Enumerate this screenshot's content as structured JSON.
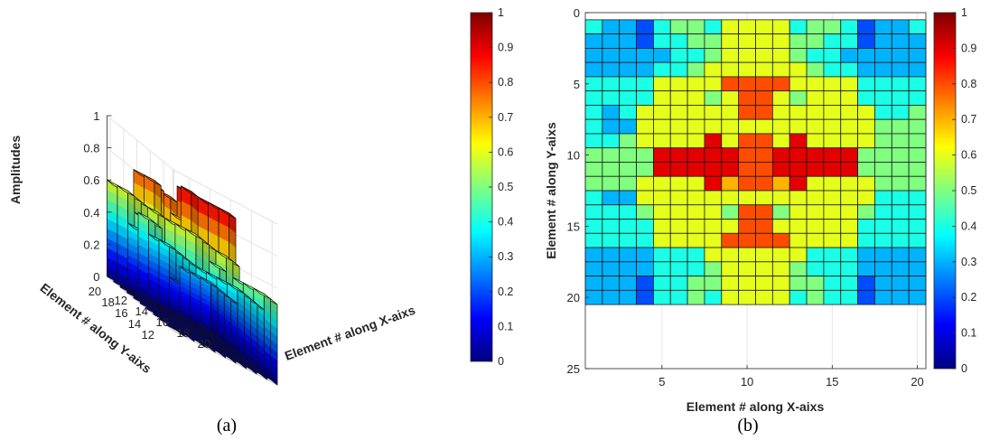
{
  "chart_data": [
    {
      "panel": "a",
      "type": "bar3d",
      "caption": "(a)",
      "zlabel": "Amplitudes",
      "xlabel": "Element # along X-aixs",
      "ylabel": "Element # along Y-aixs",
      "z_ticks": [
        0,
        0.2,
        0.4,
        0.6,
        0.8,
        1
      ],
      "x_ticks": [
        12,
        14,
        16,
        18,
        20
      ],
      "y_ticks": [
        12,
        14,
        16,
        18,
        20
      ],
      "zlim": [
        0,
        1
      ],
      "colormap": "jet",
      "colorbar_ticks": [
        0,
        0.1,
        0.2,
        0.3,
        0.4,
        0.5,
        0.6,
        0.7,
        0.8,
        0.9,
        1
      ],
      "grid": true
    },
    {
      "panel": "b",
      "type": "heatmap",
      "caption": "(b)",
      "xlabel": "Element # along X-aixs",
      "ylabel": "Element # along Y-aixs",
      "x_ticks": [
        5,
        10,
        15,
        20
      ],
      "y_ticks": [
        0,
        5,
        10,
        15,
        20,
        25
      ],
      "xlim": [
        0.5,
        20.5
      ],
      "ylim": [
        0,
        25
      ],
      "colormap": "jet",
      "colorbar_ticks": [
        0,
        0.1,
        0.2,
        0.3,
        0.4,
        0.5,
        0.6,
        0.7,
        0.8,
        0.9,
        1
      ],
      "grid": true,
      "rows": [
        [
          0.4,
          0.3,
          0.3,
          0.2,
          0.4,
          0.5,
          0.5,
          0.4,
          0.6,
          0.6,
          0.6,
          0.6,
          0.4,
          0.5,
          0.5,
          0.4,
          0.2,
          0.3,
          0.3,
          0.4
        ],
        [
          0.3,
          0.3,
          0.3,
          0.2,
          0.4,
          0.4,
          0.5,
          0.5,
          0.6,
          0.6,
          0.6,
          0.6,
          0.5,
          0.5,
          0.4,
          0.4,
          0.2,
          0.3,
          0.3,
          0.3
        ],
        [
          0.3,
          0.3,
          0.3,
          0.3,
          0.3,
          0.4,
          0.4,
          0.5,
          0.6,
          0.6,
          0.6,
          0.6,
          0.5,
          0.4,
          0.4,
          0.3,
          0.3,
          0.3,
          0.3,
          0.3
        ],
        [
          0.3,
          0.3,
          0.3,
          0.3,
          0.4,
          0.4,
          0.5,
          0.6,
          0.6,
          0.6,
          0.6,
          0.6,
          0.6,
          0.5,
          0.4,
          0.4,
          0.3,
          0.3,
          0.3,
          0.3
        ],
        [
          0.4,
          0.4,
          0.4,
          0.4,
          0.6,
          0.6,
          0.6,
          0.6,
          0.8,
          0.8,
          0.8,
          0.8,
          0.6,
          0.6,
          0.6,
          0.6,
          0.4,
          0.4,
          0.4,
          0.4
        ],
        [
          0.4,
          0.4,
          0.4,
          0.4,
          0.6,
          0.6,
          0.6,
          0.5,
          0.6,
          0.8,
          0.8,
          0.6,
          0.5,
          0.6,
          0.6,
          0.6,
          0.4,
          0.4,
          0.4,
          0.4
        ],
        [
          0.4,
          0.3,
          0.4,
          0.6,
          0.6,
          0.6,
          0.6,
          0.6,
          0.6,
          0.8,
          0.8,
          0.6,
          0.6,
          0.6,
          0.6,
          0.6,
          0.6,
          0.4,
          0.4,
          0.5
        ],
        [
          0.4,
          0.3,
          0.3,
          0.6,
          0.6,
          0.6,
          0.6,
          0.6,
          0.6,
          0.6,
          0.6,
          0.6,
          0.6,
          0.6,
          0.6,
          0.6,
          0.6,
          0.5,
          0.5,
          0.5
        ],
        [
          0.4,
          0.4,
          0.5,
          0.6,
          0.6,
          0.6,
          0.6,
          0.9,
          0.6,
          0.8,
          0.8,
          0.6,
          0.9,
          0.6,
          0.6,
          0.6,
          0.6,
          0.5,
          0.5,
          0.5
        ],
        [
          0.5,
          0.5,
          0.5,
          0.5,
          0.9,
          0.9,
          0.9,
          0.9,
          0.9,
          0.8,
          0.8,
          0.9,
          0.9,
          0.9,
          0.9,
          0.9,
          0.5,
          0.5,
          0.5,
          0.5
        ],
        [
          0.5,
          0.5,
          0.5,
          0.5,
          0.9,
          0.9,
          0.9,
          0.9,
          0.9,
          0.8,
          0.8,
          0.9,
          0.9,
          0.9,
          0.9,
          0.9,
          0.5,
          0.5,
          0.5,
          0.5
        ],
        [
          0.5,
          0.5,
          0.5,
          0.6,
          0.6,
          0.6,
          0.6,
          0.9,
          0.7,
          0.8,
          0.8,
          0.7,
          0.9,
          0.6,
          0.6,
          0.6,
          0.6,
          0.5,
          0.5,
          0.5
        ],
        [
          0.4,
          0.3,
          0.3,
          0.6,
          0.6,
          0.6,
          0.6,
          0.6,
          0.6,
          0.6,
          0.6,
          0.6,
          0.6,
          0.6,
          0.6,
          0.6,
          0.6,
          0.4,
          0.4,
          0.4
        ],
        [
          0.4,
          0.4,
          0.4,
          0.5,
          0.6,
          0.6,
          0.6,
          0.6,
          0.5,
          0.8,
          0.8,
          0.5,
          0.6,
          0.6,
          0.6,
          0.6,
          0.5,
          0.4,
          0.4,
          0.4
        ],
        [
          0.4,
          0.4,
          0.4,
          0.4,
          0.6,
          0.6,
          0.6,
          0.6,
          0.6,
          0.8,
          0.8,
          0.6,
          0.6,
          0.6,
          0.6,
          0.6,
          0.4,
          0.4,
          0.4,
          0.4
        ],
        [
          0.4,
          0.4,
          0.4,
          0.4,
          0.6,
          0.6,
          0.6,
          0.6,
          0.8,
          0.8,
          0.8,
          0.8,
          0.6,
          0.6,
          0.6,
          0.6,
          0.4,
          0.4,
          0.4,
          0.4
        ],
        [
          0.3,
          0.3,
          0.3,
          0.3,
          0.4,
          0.4,
          0.4,
          0.6,
          0.6,
          0.6,
          0.6,
          0.6,
          0.6,
          0.4,
          0.4,
          0.4,
          0.3,
          0.3,
          0.3,
          0.3
        ],
        [
          0.3,
          0.3,
          0.3,
          0.3,
          0.4,
          0.4,
          0.4,
          0.5,
          0.6,
          0.6,
          0.6,
          0.6,
          0.5,
          0.4,
          0.4,
          0.4,
          0.3,
          0.3,
          0.3,
          0.3
        ],
        [
          0.3,
          0.3,
          0.3,
          0.2,
          0.4,
          0.4,
          0.5,
          0.5,
          0.6,
          0.6,
          0.6,
          0.6,
          0.5,
          0.5,
          0.4,
          0.4,
          0.2,
          0.3,
          0.3,
          0.3
        ],
        [
          0.3,
          0.3,
          0.3,
          0.2,
          0.4,
          0.4,
          0.5,
          0.4,
          0.6,
          0.6,
          0.6,
          0.6,
          0.4,
          0.5,
          0.4,
          0.4,
          0.2,
          0.3,
          0.3,
          0.3
        ]
      ]
    }
  ]
}
